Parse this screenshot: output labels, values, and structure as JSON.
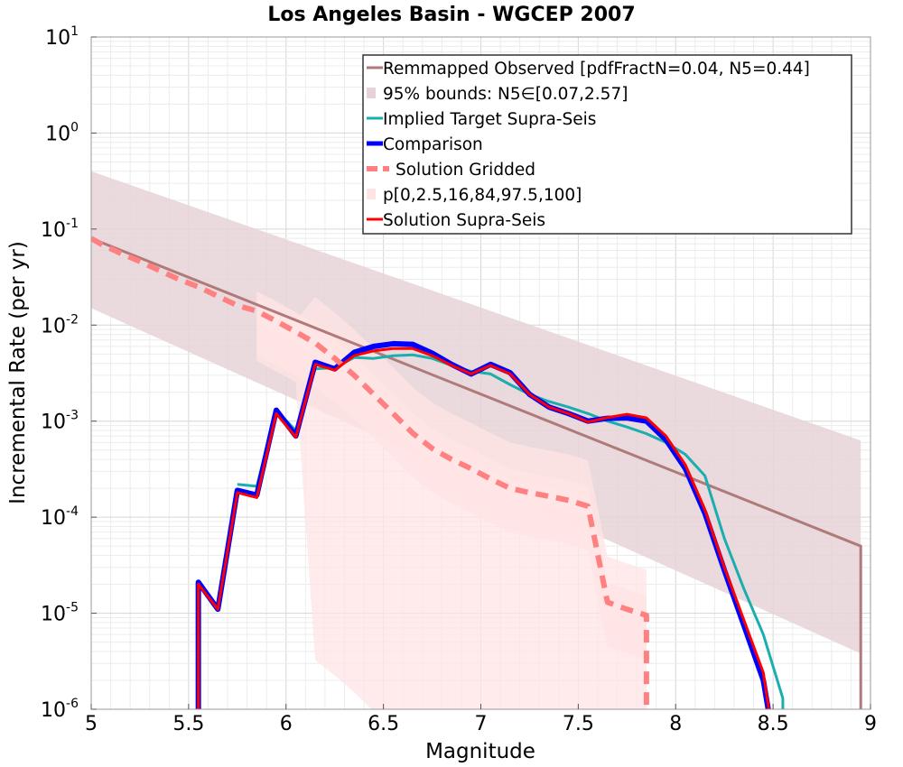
{
  "chart_data": {
    "type": "line",
    "title": "Los Angeles Basin - WGCEP 2007",
    "xlabel": "Magnitude",
    "ylabel": "Incremental Rate (per yr)",
    "xlim": [
      5,
      9
    ],
    "ylim": [
      1e-06,
      10
    ],
    "yscale": "log",
    "grid": true,
    "legend_position": "top-right",
    "x_ticks": [
      {
        "value": 5,
        "label": "5"
      },
      {
        "value": 5.5,
        "label": "5.5"
      },
      {
        "value": 6,
        "label": "6"
      },
      {
        "value": 6.5,
        "label": "6.5"
      },
      {
        "value": 7,
        "label": "7"
      },
      {
        "value": 7.5,
        "label": "7.5"
      },
      {
        "value": 8,
        "label": "8"
      },
      {
        "value": 8.5,
        "label": "8.5"
      },
      {
        "value": 9,
        "label": "9"
      }
    ],
    "y_ticks": [
      {
        "value": 10,
        "base": "10",
        "exp": "1"
      },
      {
        "value": 1,
        "base": "10",
        "exp": "0"
      },
      {
        "value": 0.1,
        "base": "10",
        "exp": "-1"
      },
      {
        "value": 0.01,
        "base": "10",
        "exp": "-2"
      },
      {
        "value": 0.001,
        "base": "10",
        "exp": "-3"
      },
      {
        "value": 0.0001,
        "base": "10",
        "exp": "-4"
      },
      {
        "value": 1e-05,
        "base": "10",
        "exp": "-5"
      },
      {
        "value": 1e-06,
        "base": "10",
        "exp": "-6"
      }
    ],
    "colors": {
      "observed": "#b07a7a",
      "bounds": "#e6d3d7",
      "target": "#1aaeae",
      "comparison": "#0000ff",
      "gridded": "#ff8080",
      "percentile_band": "#ffe4e4",
      "supra": "#ff0000"
    },
    "legend": [
      {
        "key": "observed",
        "label": "Remmapped Observed [pdfFractN=0.04, N5=0.44]"
      },
      {
        "key": "bounds",
        "label": "95% bounds: N5∈[0.07,2.57]"
      },
      {
        "key": "target",
        "label": "Implied Target Supra-Seis"
      },
      {
        "key": "comparison",
        "label": "Comparison"
      },
      {
        "key": "gridded",
        "label": "Solution Gridded"
      },
      {
        "key": "percentile_band",
        "label": "p[0,2.5,16,84,97.5,100]"
      },
      {
        "key": "supra",
        "label": "Solution Supra-Seis"
      }
    ],
    "bounds_band": {
      "x": [
        5.0,
        8.95
      ],
      "upper": [
        0.4,
        0.00063
      ],
      "lower": [
        0.015,
        3.8e-06
      ]
    },
    "series": [
      {
        "name": "Remmapped Observed [pdfFractN=0.04, N5=0.44]",
        "key": "observed",
        "x": [
          5.0,
          8.95,
          8.95
        ],
        "y": [
          0.08,
          5e-05,
          5e-07
        ]
      },
      {
        "name": "Implied Target Supra-Seis",
        "key": "target",
        "x": [
          5.75,
          5.85,
          5.95,
          6.05,
          6.15,
          6.25,
          6.35,
          6.45,
          6.55,
          6.65,
          6.75,
          6.85,
          6.95,
          7.05,
          7.15,
          7.25,
          7.35,
          7.45,
          7.55,
          7.65,
          7.75,
          7.85,
          7.95,
          8.05,
          8.15,
          8.25,
          8.35,
          8.45,
          8.55,
          8.55
        ],
        "y": [
          0.00022,
          0.00021,
          0.0013,
          0.0008,
          0.0035,
          0.0036,
          0.0046,
          0.0045,
          0.0048,
          0.0049,
          0.0045,
          0.0038,
          0.0033,
          0.0031,
          0.0024,
          0.0019,
          0.0016,
          0.0014,
          0.0012,
          0.001,
          0.00087,
          0.00074,
          0.0006,
          0.00045,
          0.00027,
          6e-05,
          1.8e-05,
          6e-06,
          1.3e-06,
          5e-07
        ]
      },
      {
        "name": "Comparison",
        "key": "comparison",
        "x": [
          5.55,
          5.55,
          5.65,
          5.75,
          5.85,
          5.95,
          6.05,
          6.15,
          6.25,
          6.35,
          6.45,
          6.55,
          6.65,
          6.75,
          6.85,
          6.95,
          7.05,
          7.15,
          7.25,
          7.35,
          7.45,
          7.55,
          7.65,
          7.75,
          7.85,
          7.95,
          8.05,
          8.15,
          8.25,
          8.35,
          8.45,
          8.5
        ],
        "y": [
          5e-07,
          2.1e-05,
          1.1e-05,
          0.00019,
          0.00017,
          0.0013,
          0.0007,
          0.0041,
          0.0035,
          0.0052,
          0.006,
          0.0064,
          0.0063,
          0.0051,
          0.0039,
          0.0031,
          0.0039,
          0.0032,
          0.0019,
          0.0014,
          0.0012,
          0.001,
          0.00107,
          0.00108,
          0.001,
          0.00064,
          0.00032,
          0.00011,
          2.8e-05,
          7.5e-06,
          2e-06,
          5e-07
        ]
      },
      {
        "name": "Solution Gridded",
        "key": "gridded",
        "x": [
          5.0,
          5.05,
          5.15,
          5.25,
          5.35,
          5.45,
          5.55,
          5.65,
          5.75,
          5.85,
          5.95,
          6.05,
          6.15,
          6.25,
          6.35,
          6.45,
          6.55,
          6.65,
          6.75,
          6.85,
          6.95,
          7.05,
          7.15,
          7.25,
          7.35,
          7.45,
          7.55,
          7.65,
          7.75,
          7.85,
          7.85
        ],
        "y": [
          0.08,
          0.07,
          0.056,
          0.046,
          0.037,
          0.03,
          0.025,
          0.02,
          0.016,
          0.014,
          0.011,
          0.0085,
          0.0065,
          0.0045,
          0.003,
          0.0019,
          0.0012,
          0.00075,
          0.00052,
          0.0004,
          0.00032,
          0.00025,
          0.0002,
          0.00018,
          0.000165,
          0.00015,
          0.00013,
          1.3e-05,
          1.1e-05,
          9.5e-06,
          5e-07
        ]
      },
      {
        "name": "Solution Supra-Seis",
        "key": "supra",
        "x": [
          5.55,
          5.55,
          5.65,
          5.75,
          5.85,
          5.95,
          6.05,
          6.15,
          6.25,
          6.35,
          6.45,
          6.55,
          6.65,
          6.75,
          6.85,
          6.95,
          7.05,
          7.15,
          7.25,
          7.35,
          7.45,
          7.55,
          7.65,
          7.75,
          7.85,
          7.95,
          8.05,
          8.15,
          8.25,
          8.35,
          8.45,
          8.5
        ],
        "y": [
          5e-07,
          2e-05,
          1.1e-05,
          0.00018,
          0.00016,
          0.0012,
          0.00068,
          0.0039,
          0.0034,
          0.0048,
          0.0054,
          0.0057,
          0.0057,
          0.0048,
          0.0038,
          0.0031,
          0.0038,
          0.0031,
          0.0019,
          0.0014,
          0.0012,
          0.00098,
          0.00109,
          0.00118,
          0.00108,
          0.0007,
          0.00035,
          0.00012,
          3e-05,
          8.5e-06,
          2.4e-06,
          5e-07
        ]
      }
    ]
  }
}
